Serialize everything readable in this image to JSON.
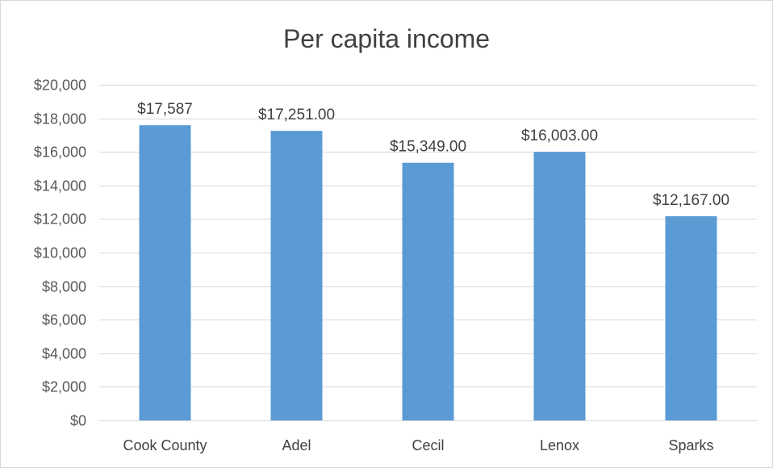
{
  "chart_data": {
    "type": "bar",
    "title": "Per capita income",
    "xlabel": "",
    "ylabel": "",
    "categories": [
      "Cook County",
      "Adel",
      "Cecil",
      "Lenox",
      "Sparks"
    ],
    "values": [
      17587,
      17251,
      15349,
      16003,
      12167
    ],
    "data_labels": [
      "$17,587",
      "$17,251.00",
      "$15,349.00",
      "$16,003.00",
      "$12,167.00"
    ],
    "ylim": [
      0,
      20000
    ],
    "y_ticks": [
      0,
      2000,
      4000,
      6000,
      8000,
      10000,
      12000,
      14000,
      16000,
      18000,
      20000
    ],
    "y_tick_labels": [
      "$0",
      "$2,000",
      "$4,000",
      "$6,000",
      "$8,000",
      "$10,000",
      "$12,000",
      "$14,000",
      "$16,000",
      "$18,000",
      "$20,000"
    ],
    "grid": true,
    "legend": "none",
    "bar_color": "#5b9bd5",
    "grid_color": "#d9d9d9"
  }
}
